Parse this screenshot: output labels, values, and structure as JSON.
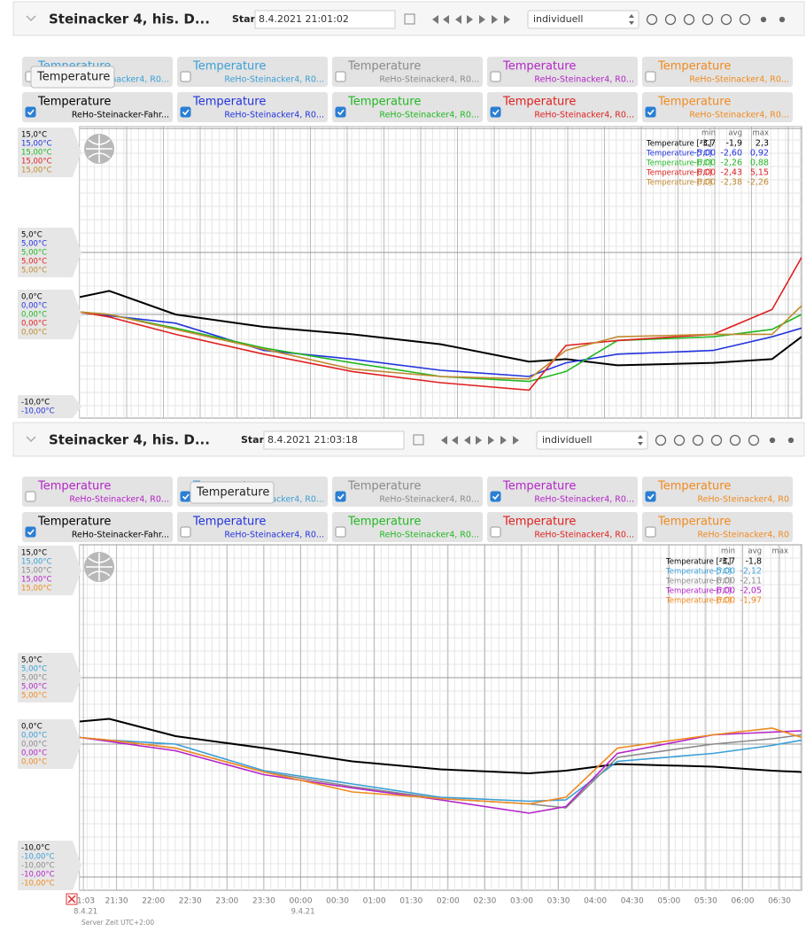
{
  "panels": [
    {
      "title": "Steinacker 4, his. D...",
      "start_label": "Start:",
      "start": "8.4.2021 21:01:02",
      "mode": "individuell",
      "tooltip": "Temperature",
      "sensors": [
        {
          "name": "Temperature",
          "device": "ReHo-Steinacker4, R0...",
          "color": "#3a9fd6",
          "checked": false
        },
        {
          "name": "Temperature",
          "device": "ReHo-Steinacker4, R0...",
          "color": "#3a9fd6",
          "checked": false
        },
        {
          "name": "Temperature",
          "device": "ReHo-Steinacker4, R0...",
          "color": "#8a8a8a",
          "checked": false
        },
        {
          "name": "Temperature",
          "device": "ReHo-Steinacker4, R0...",
          "color": "#b424c8",
          "checked": false
        },
        {
          "name": "Temperature",
          "device": "ReHo-Steinacker4, R0...",
          "color": "#f08a1e",
          "checked": false
        },
        {
          "name": "Temperature",
          "device": "ReHo-Steinacker-Fahr...",
          "color": "#000000",
          "checked": true
        },
        {
          "name": "Temperature",
          "device": "ReHo-Steinacker4, R0...",
          "color": "#2233dd",
          "checked": true
        },
        {
          "name": "Temperature",
          "device": "ReHo-Steinacker4, R0...",
          "color": "#22b822",
          "checked": true
        },
        {
          "name": "Temperature",
          "device": "ReHo-Steinacker4, R0...",
          "color": "#e02020",
          "checked": true
        },
        {
          "name": "Temperature",
          "device": "ReHo-Steinacker4, R0...",
          "color": "#f08a1e",
          "checked": true
        }
      ],
      "ylim": [
        -10,
        15
      ],
      "xlim": [
        21.0,
        30.8
      ],
      "yticks": [
        {
          "value": 15,
          "labels": [
            "15,0°C",
            "15,00°C",
            "15,00°C",
            "15,00°C",
            "15,00°C"
          ]
        },
        {
          "value": 5,
          "labels": [
            "5,0°C",
            "5,00°C",
            "5,00°C",
            "5,00°C",
            "5,00°C"
          ]
        },
        {
          "value": 0,
          "labels": [
            "0,0°C",
            "0,00°C",
            "0,00°C",
            "0,00°C",
            "0,00°C"
          ]
        },
        {
          "value": -10,
          "labels": [
            "-10,0°C",
            "-10,00°C"
          ]
        }
      ],
      "x": [
        21.0,
        21.4,
        22.3,
        23.5,
        24.7,
        25.9,
        27.1,
        27.6,
        28.3,
        29.6,
        30.4,
        30.8
      ],
      "series": [
        {
          "color": "#000000",
          "values": [
            1.4,
            1.9,
            0.0,
            -1.0,
            -1.6,
            -2.4,
            -3.8,
            -3.6,
            -4.1,
            -3.9,
            -3.6,
            -1.8
          ]
        },
        {
          "color": "#2233dd",
          "values": [
            0.2,
            -0.1,
            -0.7,
            -2.9,
            -3.6,
            -4.5,
            -5.0,
            -3.9,
            -3.2,
            -2.9,
            -1.8,
            -1.1
          ]
        },
        {
          "color": "#22b822",
          "values": [
            0.2,
            0.0,
            -1.1,
            -2.7,
            -3.9,
            -5.0,
            -5.4,
            -4.6,
            -2.1,
            -1.8,
            -1.2,
            0.0
          ]
        },
        {
          "color": "#e02020",
          "values": [
            0.2,
            -0.2,
            -1.6,
            -3.2,
            -4.6,
            -5.5,
            -6.1,
            -2.5,
            -2.1,
            -1.6,
            0.4,
            4.6
          ]
        },
        {
          "color": "#c08a30",
          "values": [
            0.2,
            0.0,
            -1.2,
            -2.8,
            -4.4,
            -5.0,
            -5.2,
            -2.9,
            -1.8,
            -1.6,
            -1.6,
            0.7
          ]
        }
      ],
      "stats": {
        "header": [
          "min",
          "avg",
          "max"
        ],
        "rows": [
          [
            "Temperature [°C]",
            "-3,7",
            "-1,9",
            "2,3"
          ],
          [
            "Temperature [°C]",
            "-5,00",
            "-2,60",
            "0,92"
          ],
          [
            "Temperature [°C]",
            "-6,00",
            "-2,26",
            "0,88"
          ],
          [
            "Temperature [°C]",
            "-6,00",
            "-2,43",
            "5,15"
          ],
          [
            "Temperature [°C]",
            "-6,00",
            "-2,38",
            "-2,26"
          ]
        ]
      }
    },
    {
      "title": "Steinacker 4, his. D...",
      "start_label": "Start:",
      "start": "8.4.2021 21:03:18",
      "mode": "individuell",
      "tooltip": "Temperature",
      "sensors": [
        {
          "name": "Temperature",
          "device": "ReHo-Steinacker4, R0...",
          "color": "#b424c8",
          "checked": false
        },
        {
          "name": "Temperature",
          "device": "ReHo-Steinacker4, R0...",
          "color": "#3a9fd6",
          "checked": true
        },
        {
          "name": "Temperature",
          "device": "ReHo-Steinacker4, R0...",
          "color": "#8a8a8a",
          "checked": true
        },
        {
          "name": "Temperature",
          "device": "ReHo-Steinacker4, R0...",
          "color": "#b424c8",
          "checked": true
        },
        {
          "name": "Temperature",
          "device": "ReHo-Steinacker4, R0",
          "color": "#f08a1e",
          "checked": true
        },
        {
          "name": "Temperature",
          "device": "ReHo-Steinacker-Fahr...",
          "color": "#000000",
          "checked": true
        },
        {
          "name": "Temperature",
          "device": "ReHo-Steinacker4, R0...",
          "color": "#2233dd",
          "checked": false
        },
        {
          "name": "Temperature",
          "device": "ReHo-Steinacker4, R0...",
          "color": "#22b822",
          "checked": false
        },
        {
          "name": "Temperature",
          "device": "ReHo-Steinacker4, R0...",
          "color": "#e02020",
          "checked": false
        },
        {
          "name": "Temperature",
          "device": "ReHo-Steinacker4, R0",
          "color": "#f08a1e",
          "checked": false
        }
      ],
      "ylim": [
        -10,
        15
      ],
      "xlim": [
        21.0,
        30.8
      ],
      "yticks": [
        {
          "value": 15,
          "labels": [
            "15,0°C",
            "15,00°C",
            "15,00°C",
            "15,00°C",
            "15,00°C"
          ]
        },
        {
          "value": 5,
          "labels": [
            "5,0°C",
            "5,00°C",
            "5,00°C",
            "5,00°C",
            "5,00°C"
          ]
        },
        {
          "value": 0,
          "labels": [
            "0,0°C",
            "0,00°C",
            "0,00°C",
            "0,00°C",
            "0,00°C"
          ]
        },
        {
          "value": -10,
          "labels": [
            "-10,0°C",
            "-10,00°C",
            "-10,00°C",
            "-10,00°C",
            "-10,00°C"
          ]
        }
      ],
      "xticks": [
        {
          "value": 21.05,
          "label": "21:03"
        },
        {
          "value": 21.5,
          "label": "21:30"
        },
        {
          "value": 22,
          "label": "22:00"
        },
        {
          "value": 22.5,
          "label": "22:30"
        },
        {
          "value": 23,
          "label": "23:00"
        },
        {
          "value": 23.5,
          "label": "23:30"
        },
        {
          "value": 24,
          "label": "00:00"
        },
        {
          "value": 24.5,
          "label": "00:30"
        },
        {
          "value": 25,
          "label": "01:00"
        },
        {
          "value": 25.5,
          "label": "01:30"
        },
        {
          "value": 26,
          "label": "02:00"
        },
        {
          "value": 26.5,
          "label": "02:30"
        },
        {
          "value": 27,
          "label": "03:00"
        },
        {
          "value": 27.5,
          "label": "03:30"
        },
        {
          "value": 28,
          "label": "04:00"
        },
        {
          "value": 28.5,
          "label": "04:30"
        },
        {
          "value": 29,
          "label": "05:00"
        },
        {
          "value": 29.5,
          "label": "05:30"
        },
        {
          "value": 30,
          "label": "06:00"
        },
        {
          "value": 30.5,
          "label": "06:30"
        }
      ],
      "dates": [
        {
          "value": 21.05,
          "label": "8.4.21"
        },
        {
          "value": 24,
          "label": "9.4.21"
        }
      ],
      "server_time": "Server Zeit UTC+2:00",
      "x": [
        21.0,
        21.4,
        22.3,
        23.5,
        24.7,
        25.9,
        27.1,
        27.6,
        28.3,
        29.6,
        30.4,
        30.8
      ],
      "series": [
        {
          "color": "#000000",
          "values": [
            1.7,
            1.9,
            0.6,
            -0.3,
            -1.3,
            -1.9,
            -2.2,
            -2.0,
            -1.5,
            -1.7,
            -2.0,
            -2.1
          ]
        },
        {
          "color": "#3a9fd6",
          "values": [
            0.5,
            0.3,
            0.0,
            -2.0,
            -3.0,
            -4.0,
            -4.3,
            -4.2,
            -1.3,
            -0.7,
            -0.1,
            0.3
          ]
        },
        {
          "color": "#8a8a8a",
          "values": [
            0.5,
            0.3,
            -0.3,
            -2.1,
            -3.2,
            -4.1,
            -4.5,
            -4.8,
            -1.0,
            0.0,
            0.4,
            0.7
          ]
        },
        {
          "color": "#b424c8",
          "values": [
            0.5,
            0.2,
            -0.5,
            -2.3,
            -3.3,
            -4.2,
            -5.2,
            -4.7,
            -0.7,
            0.7,
            0.9,
            1.0
          ]
        },
        {
          "color": "#f08a1e",
          "values": [
            0.5,
            0.3,
            -0.3,
            -2.1,
            -3.6,
            -4.1,
            -4.5,
            -4.0,
            -0.3,
            0.7,
            1.2,
            0.5
          ]
        }
      ],
      "stats": {
        "header": [
          "min",
          "avg",
          "max"
        ],
        "rows": [
          [
            "Temperature [°C]",
            "-3,7",
            "-1,8"
          ],
          [
            "Temperature [°C]",
            "-5,00",
            "-2,12"
          ],
          [
            "Temperature [°C]",
            "-6,00",
            "-2,11"
          ],
          [
            "Temperature [°C]",
            "-6,00",
            "-2,05"
          ],
          [
            "Temperature [°C]",
            "-6,00",
            "-1,97"
          ]
        ]
      }
    }
  ]
}
